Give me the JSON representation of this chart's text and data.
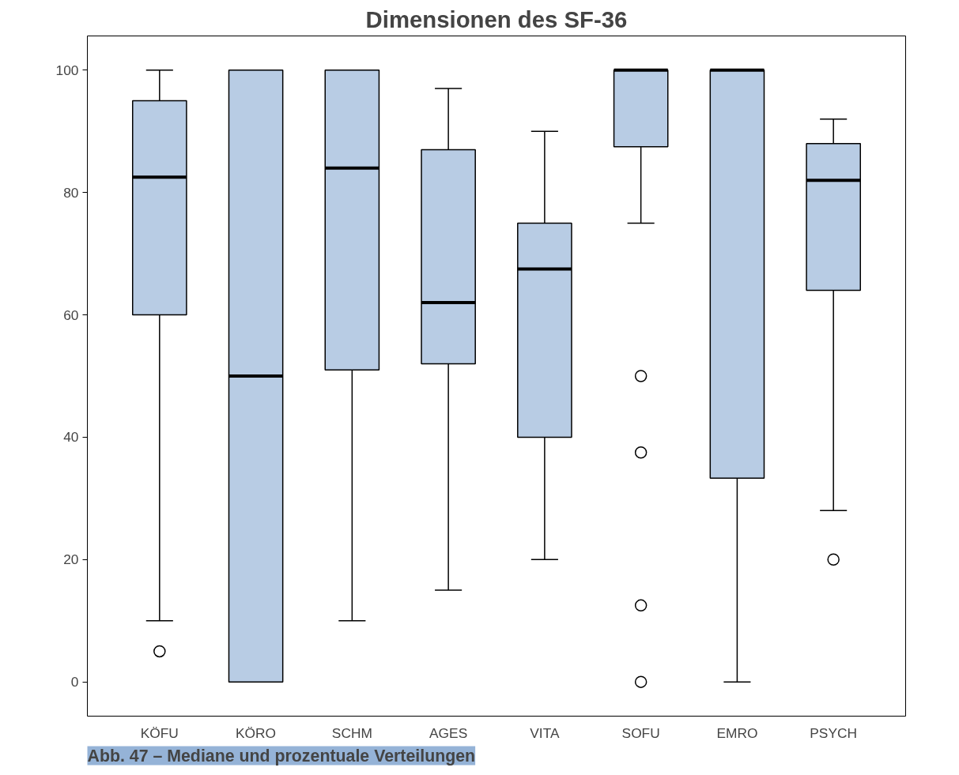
{
  "chart_data": {
    "type": "box",
    "title": "Dimensionen des SF-36",
    "categories": [
      "KÖFU",
      "KÖRO",
      "SCHM",
      "AGES",
      "VITA",
      "SOFU",
      "EMRO",
      "PSYCH"
    ],
    "boxes": [
      {
        "low": 10,
        "q1": 60,
        "median": 82.5,
        "q3": 95,
        "high": 100,
        "outliers": [
          5
        ]
      },
      {
        "low": 0,
        "q1": 0,
        "median": 50,
        "q3": 100,
        "high": 100
      },
      {
        "low": 10,
        "q1": 51,
        "median": 84,
        "q3": 100,
        "high": 100
      },
      {
        "low": 15,
        "q1": 52,
        "median": 62,
        "q3": 87,
        "high": 97
      },
      {
        "low": 20,
        "q1": 40,
        "median": 67.5,
        "q3": 75,
        "high": 90
      },
      {
        "low": 75,
        "q1": 87.5,
        "median": 100,
        "q3": 100,
        "high": 100,
        "outliers": [
          50,
          37.5,
          12.5,
          0
        ]
      },
      {
        "low": 0,
        "q1": 33.3,
        "median": 100,
        "q3": 100,
        "high": 100
      },
      {
        "low": 28,
        "q1": 64,
        "median": 82,
        "q3": 88,
        "high": 92,
        "outliers": [
          20
        ]
      }
    ],
    "color": "#b8cce4",
    "ylim": [
      -5.6,
      105.6
    ],
    "yticks": [
      0,
      20,
      40,
      60,
      80,
      100
    ],
    "grid": false,
    "annotations": [
      "Abb. 47 – Mediane und prozentuale Verteilungen"
    ]
  }
}
